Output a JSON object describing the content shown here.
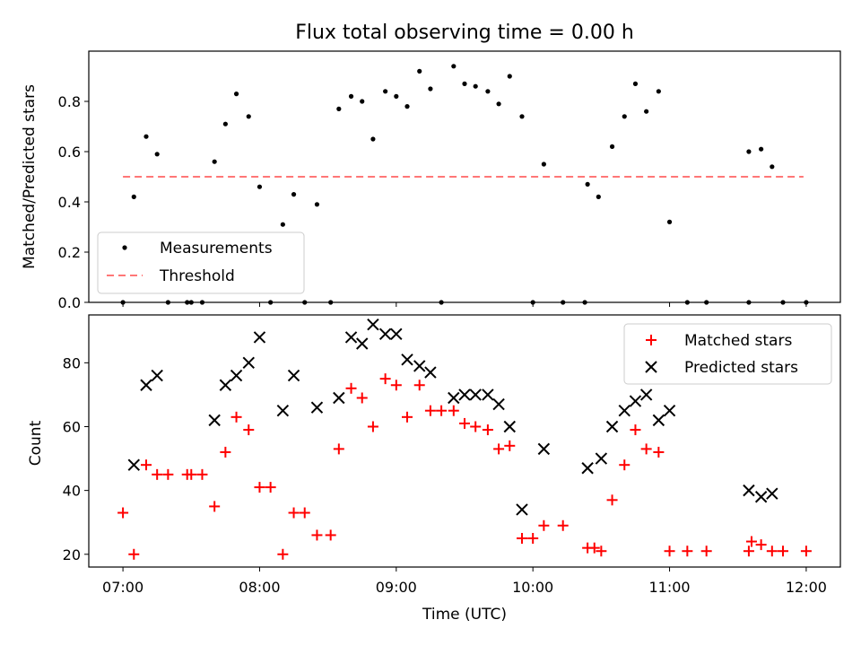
{
  "figure": {
    "title": "Flux total observing time = 0.00 h",
    "xlabel": "Time (UTC)",
    "x_ticks": [
      "07:00",
      "08:00",
      "09:00",
      "10:00",
      "11:00",
      "12:00"
    ]
  },
  "chart_data": [
    {
      "type": "scatter",
      "title": "Flux total observing time = 0.00 h",
      "xlabel": "",
      "ylabel": "Matched/Predicted stars",
      "x_unit": "hours UTC",
      "xlim": [
        6.75,
        12.25
      ],
      "ylim": [
        0,
        1.0
      ],
      "y_ticks": [
        "0.0",
        "0.2",
        "0.4",
        "0.6",
        "0.8"
      ],
      "legend_position": "lower-left",
      "series": [
        {
          "name": "Measurements",
          "marker": "dot",
          "color": "#000000",
          "points": [
            [
              7.0,
              0.0
            ],
            [
              7.08,
              0.42
            ],
            [
              7.17,
              0.66
            ],
            [
              7.25,
              0.59
            ],
            [
              7.33,
              0.0
            ],
            [
              7.47,
              0.0
            ],
            [
              7.5,
              0.0
            ],
            [
              7.58,
              0.0
            ],
            [
              7.67,
              0.56
            ],
            [
              7.75,
              0.71
            ],
            [
              7.83,
              0.83
            ],
            [
              7.92,
              0.74
            ],
            [
              8.0,
              0.46
            ],
            [
              8.08,
              0.0
            ],
            [
              8.17,
              0.31
            ],
            [
              8.25,
              0.43
            ],
            [
              8.33,
              0.0
            ],
            [
              8.42,
              0.39
            ],
            [
              8.52,
              0.0
            ],
            [
              8.58,
              0.77
            ],
            [
              8.67,
              0.82
            ],
            [
              8.75,
              0.8
            ],
            [
              8.83,
              0.65
            ],
            [
              8.92,
              0.84
            ],
            [
              9.0,
              0.82
            ],
            [
              9.08,
              0.78
            ],
            [
              9.17,
              0.92
            ],
            [
              9.25,
              0.85
            ],
            [
              9.33,
              0.0
            ],
            [
              9.42,
              0.94
            ],
            [
              9.5,
              0.87
            ],
            [
              9.58,
              0.86
            ],
            [
              9.67,
              0.84
            ],
            [
              9.75,
              0.79
            ],
            [
              9.83,
              0.9
            ],
            [
              9.92,
              0.74
            ],
            [
              10.0,
              0.0
            ],
            [
              10.08,
              0.55
            ],
            [
              10.22,
              0.0
            ],
            [
              10.38,
              0.0
            ],
            [
              10.4,
              0.47
            ],
            [
              10.48,
              0.42
            ],
            [
              10.58,
              0.62
            ],
            [
              10.67,
              0.74
            ],
            [
              10.75,
              0.87
            ],
            [
              10.83,
              0.76
            ],
            [
              10.92,
              0.84
            ],
            [
              11.0,
              0.32
            ],
            [
              11.13,
              0.0
            ],
            [
              11.27,
              0.0
            ],
            [
              11.58,
              0.0
            ],
            [
              11.58,
              0.6
            ],
            [
              11.67,
              0.61
            ],
            [
              11.75,
              0.54
            ],
            [
              11.83,
              0.0
            ],
            [
              12.0,
              0.0
            ]
          ]
        },
        {
          "name": "Threshold",
          "marker": "dashed-line",
          "color": "#ff7777",
          "points": [
            [
              7.0,
              0.5
            ],
            [
              11.98,
              0.5
            ]
          ]
        }
      ]
    },
    {
      "type": "scatter",
      "title": "",
      "xlabel": "Time (UTC)",
      "ylabel": "Count",
      "x_unit": "hours UTC",
      "xlim": [
        6.75,
        12.25
      ],
      "ylim": [
        16,
        95
      ],
      "y_ticks": [
        "20",
        "40",
        "60",
        "80"
      ],
      "legend_position": "upper-right",
      "series": [
        {
          "name": "Matched stars",
          "marker": "plus",
          "color": "#ff0000",
          "points": [
            [
              7.0,
              33
            ],
            [
              7.08,
              20
            ],
            [
              7.17,
              48
            ],
            [
              7.25,
              45
            ],
            [
              7.33,
              45
            ],
            [
              7.47,
              45
            ],
            [
              7.5,
              45
            ],
            [
              7.58,
              45
            ],
            [
              7.67,
              35
            ],
            [
              7.75,
              52
            ],
            [
              7.83,
              63
            ],
            [
              7.92,
              59
            ],
            [
              8.0,
              41
            ],
            [
              8.08,
              41
            ],
            [
              8.17,
              20
            ],
            [
              8.25,
              33
            ],
            [
              8.33,
              33
            ],
            [
              8.42,
              26
            ],
            [
              8.52,
              26
            ],
            [
              8.58,
              53
            ],
            [
              8.67,
              72
            ],
            [
              8.75,
              69
            ],
            [
              8.83,
              60
            ],
            [
              8.92,
              75
            ],
            [
              9.0,
              73
            ],
            [
              9.08,
              63
            ],
            [
              9.17,
              73
            ],
            [
              9.25,
              65
            ],
            [
              9.33,
              65
            ],
            [
              9.42,
              65
            ],
            [
              9.5,
              61
            ],
            [
              9.58,
              60
            ],
            [
              9.67,
              59
            ],
            [
              9.75,
              53
            ],
            [
              9.83,
              54
            ],
            [
              9.92,
              25
            ],
            [
              10.0,
              25
            ],
            [
              10.08,
              29
            ],
            [
              10.22,
              29
            ],
            [
              10.4,
              22
            ],
            [
              10.45,
              22
            ],
            [
              10.5,
              21
            ],
            [
              10.58,
              37
            ],
            [
              10.67,
              48
            ],
            [
              10.75,
              59
            ],
            [
              10.83,
              53
            ],
            [
              10.92,
              52
            ],
            [
              11.0,
              21
            ],
            [
              11.13,
              21
            ],
            [
              11.27,
              21
            ],
            [
              11.58,
              21
            ],
            [
              11.6,
              24
            ],
            [
              11.67,
              23
            ],
            [
              11.75,
              21
            ],
            [
              11.83,
              21
            ],
            [
              12.0,
              21
            ]
          ]
        },
        {
          "name": "Predicted stars",
          "marker": "x",
          "color": "#000000",
          "points": [
            [
              7.08,
              48
            ],
            [
              7.17,
              73
            ],
            [
              7.25,
              76
            ],
            [
              7.67,
              62
            ],
            [
              7.75,
              73
            ],
            [
              7.83,
              76
            ],
            [
              7.92,
              80
            ],
            [
              8.0,
              88
            ],
            [
              8.17,
              65
            ],
            [
              8.25,
              76
            ],
            [
              8.42,
              66
            ],
            [
              8.58,
              69
            ],
            [
              8.67,
              88
            ],
            [
              8.75,
              86
            ],
            [
              8.83,
              92
            ],
            [
              8.92,
              89
            ],
            [
              9.0,
              89
            ],
            [
              9.08,
              81
            ],
            [
              9.17,
              79
            ],
            [
              9.25,
              77
            ],
            [
              9.42,
              69
            ],
            [
              9.5,
              70
            ],
            [
              9.58,
              70
            ],
            [
              9.67,
              70
            ],
            [
              9.75,
              67
            ],
            [
              9.83,
              60
            ],
            [
              9.92,
              34
            ],
            [
              10.08,
              53
            ],
            [
              10.4,
              47
            ],
            [
              10.5,
              50
            ],
            [
              10.58,
              60
            ],
            [
              10.67,
              65
            ],
            [
              10.75,
              68
            ],
            [
              10.83,
              70
            ],
            [
              10.92,
              62
            ],
            [
              11.0,
              65
            ],
            [
              11.58,
              40
            ],
            [
              11.67,
              38
            ],
            [
              11.75,
              39
            ]
          ]
        }
      ]
    }
  ]
}
